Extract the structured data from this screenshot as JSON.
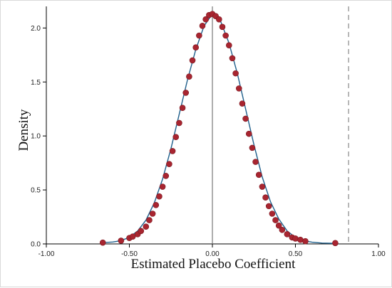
{
  "chart_data": {
    "type": "scatter",
    "xlabel": "Estimated Placebo Coefficient",
    "ylabel": "Density",
    "xlim": [
      -1.0,
      1.0
    ],
    "ylim": [
      0.0,
      2.2
    ],
    "x_ticks": [
      "-1.00",
      "-0.50",
      "0.00",
      "0.50",
      "1.00"
    ],
    "y_ticks": [
      "0.0",
      "0.5",
      "1.0",
      "1.5",
      "2.0"
    ],
    "grid": false,
    "reference_lines": [
      {
        "x": 0.0,
        "style": "solid",
        "color": "#777777"
      },
      {
        "x": 0.82,
        "style": "dashed",
        "color": "#888888"
      }
    ],
    "density_curve": {
      "color": "#1f5f8b",
      "points": [
        [
          -0.66,
          0.012
        ],
        [
          -0.6,
          0.018
        ],
        [
          -0.55,
          0.03
        ],
        [
          -0.5,
          0.062
        ],
        [
          -0.45,
          0.12
        ],
        [
          -0.4,
          0.22
        ],
        [
          -0.35,
          0.38
        ],
        [
          -0.3,
          0.6
        ],
        [
          -0.25,
          0.88
        ],
        [
          -0.2,
          1.2
        ],
        [
          -0.15,
          1.52
        ],
        [
          -0.1,
          1.8
        ],
        [
          -0.05,
          2.02
        ],
        [
          0.0,
          2.13
        ],
        [
          0.05,
          2.06
        ],
        [
          0.1,
          1.86
        ],
        [
          0.15,
          1.58
        ],
        [
          0.2,
          1.25
        ],
        [
          0.25,
          0.92
        ],
        [
          0.3,
          0.62
        ],
        [
          0.35,
          0.39
        ],
        [
          0.4,
          0.23
        ],
        [
          0.45,
          0.12
        ],
        [
          0.5,
          0.06
        ],
        [
          0.55,
          0.03
        ],
        [
          0.6,
          0.016
        ],
        [
          0.66,
          0.008
        ],
        [
          0.74,
          0.005
        ]
      ]
    },
    "series": [
      {
        "color": "#a82530",
        "marker": "circle",
        "points": [
          [
            -0.66,
            0.012
          ],
          [
            -0.55,
            0.03
          ],
          [
            -0.5,
            0.055
          ],
          [
            -0.48,
            0.068
          ],
          [
            -0.45,
            0.09
          ],
          [
            -0.43,
            0.12
          ],
          [
            -0.4,
            0.16
          ],
          [
            -0.38,
            0.22
          ],
          [
            -0.36,
            0.28
          ],
          [
            -0.34,
            0.36
          ],
          [
            -0.32,
            0.44
          ],
          [
            -0.3,
            0.53
          ],
          [
            -0.28,
            0.63
          ],
          [
            -0.26,
            0.74
          ],
          [
            -0.24,
            0.86
          ],
          [
            -0.22,
            0.99
          ],
          [
            -0.2,
            1.12
          ],
          [
            -0.18,
            1.26
          ],
          [
            -0.16,
            1.4
          ],
          [
            -0.14,
            1.55
          ],
          [
            -0.12,
            1.7
          ],
          [
            -0.1,
            1.82
          ],
          [
            -0.08,
            1.93
          ],
          [
            -0.06,
            2.02
          ],
          [
            -0.04,
            2.08
          ],
          [
            -0.02,
            2.12
          ],
          [
            0.0,
            2.13
          ],
          [
            0.02,
            2.11
          ],
          [
            0.04,
            2.08
          ],
          [
            0.06,
            2.01
          ],
          [
            0.08,
            1.93
          ],
          [
            0.1,
            1.84
          ],
          [
            0.12,
            1.72
          ],
          [
            0.14,
            1.58
          ],
          [
            0.16,
            1.44
          ],
          [
            0.18,
            1.3
          ],
          [
            0.2,
            1.16
          ],
          [
            0.22,
            1.02
          ],
          [
            0.24,
            0.89
          ],
          [
            0.26,
            0.76
          ],
          [
            0.28,
            0.64
          ],
          [
            0.3,
            0.53
          ],
          [
            0.32,
            0.43
          ],
          [
            0.34,
            0.35
          ],
          [
            0.36,
            0.28
          ],
          [
            0.38,
            0.22
          ],
          [
            0.4,
            0.17
          ],
          [
            0.42,
            0.13
          ],
          [
            0.45,
            0.09
          ],
          [
            0.48,
            0.06
          ],
          [
            0.5,
            0.05
          ],
          [
            0.53,
            0.038
          ],
          [
            0.56,
            0.025
          ],
          [
            0.74,
            0.008
          ]
        ]
      }
    ]
  }
}
